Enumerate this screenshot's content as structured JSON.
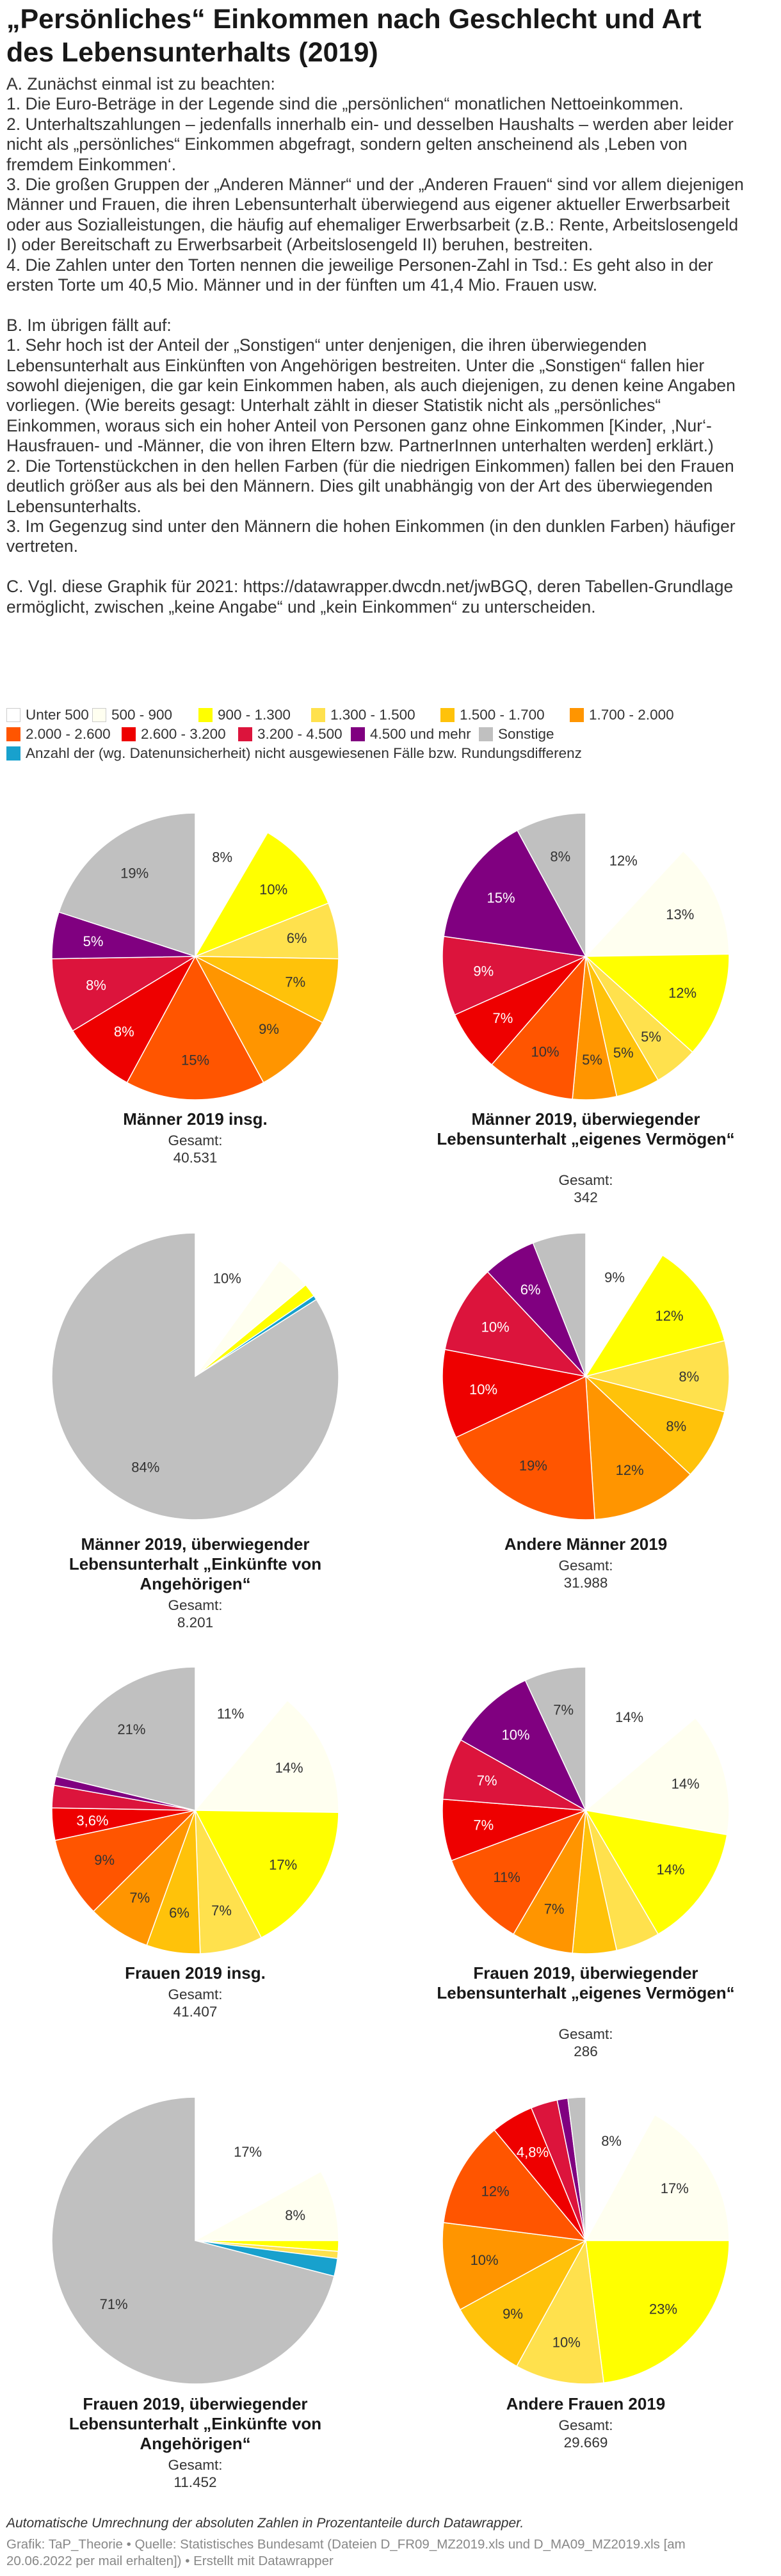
{
  "title": "„Persönliches“ Einkommen nach Geschlecht und Art des Lebensunterhalts (2019)",
  "intro": {
    "a_lines": [
      "A. Zunächst einmal ist zu beachten:",
      "1. Die Euro-Beträge in der Legende sind die „persönlichen“ monatlichen Nettoeinkommen.",
      "2. Unterhaltszahlungen – jedenfalls innerhalb ein- und desselben Haushalts – werden aber leider",
      "nicht als „persönliches“ Einkommen abgefragt, sondern gelten anscheinend als ‚Leben von",
      "fremdem Einkommen‘.",
      "3. Die großen Gruppen der „Anderen Männer“ und der „Anderen Frauen“ sind vor allem diejenigen",
      "Männer und Frauen, die ihren Lebensunterhalt überwiegend aus eigener aktueller Erwerbsarbeit",
      "oder aus Sozialleistungen, die häufig auf ehemaliger Erwerbsarbeit (z.B.: Rente, Arbeitslosengeld",
      "I) oder Bereitschaft zu Erwerbsarbeit (Arbeitslosengeld II) beruhen, bestreiten.",
      "4. Die Zahlen unter den Torten nennen die jeweilige Personen-Zahl in Tsd.: Es geht also in der",
      "ersten Torte um 40,5 Mio. Männer und in der fünften um 41,4 Mio. Frauen usw."
    ],
    "b_lines": [
      "B. Im übrigen fällt auf:",
      "1. Sehr hoch ist der Anteil der „Sonstigen“ unter denjenigen, die ihren überwiegenden",
      "Lebensunterhalt aus Einkünften von Angehörigen bestreiten. Unter die „Sonstigen“ fallen hier",
      "sowohl diejenigen, die gar kein Einkommen haben, als auch diejenigen, zu denen keine Angaben",
      "vorliegen. (Wie bereits gesagt: Unterhalt zählt in dieser Statistik nicht als „persönliches“",
      "Einkommen, woraus sich ein hoher Anteil von Personen ganz ohne Einkommen [Kinder, ‚Nur‘-",
      "Hausfrauen- und -Männer, die von ihren Eltern bzw. PartnerInnen unterhalten werden] erklärt.)",
      "2. Die Tortenstückchen in den hellen Farben (für die niedrigen Einkommen) fallen bei den Frauen",
      "deutlich größer aus als bei den Männern. Dies gilt unabhängig von der Art des überwiegenden",
      "Lebensunterhalts.",
      "3. Im Gegenzug sind unter den Männern die hohen Einkommen (in den dunklen Farben) häufiger",
      "vertreten."
    ],
    "c_lines": [
      "C. Vgl. diese Graphik für 2021: https://datawrapper.dwcdn.net/jwBGQ, deren Tabellen-Grundlage",
      "ermöglicht, zwischen „keine Angabe“ und „kein Einkommen“ zu unterscheiden."
    ]
  },
  "legend": {
    "rows": [
      [
        {
          "label": "Unter 500",
          "color": "#ffffff",
          "border": "#cccccc"
        },
        {
          "label": "500 - 900",
          "color": "#fffff0",
          "border": "#cccccc"
        },
        {
          "label": "900 - 1.300",
          "color": "#ffff00"
        },
        {
          "label": "1.300 - 1.500",
          "color": "#ffe14d"
        },
        {
          "label": "1.500 - 1.700",
          "color": "#ffc20a"
        },
        {
          "label": "1.700 - 2.000",
          "color": "#ff9500"
        }
      ],
      [
        {
          "label": "2.000 - 2.600",
          "color": "#ff5500"
        },
        {
          "label": "2.600 - 3.200",
          "color": "#ee0000"
        },
        {
          "label": "3.200 - 4.500",
          "color": "#dc143c"
        },
        {
          "label": "4.500 und mehr",
          "color": "#800080"
        },
        {
          "label": "Sonstige",
          "color": "#c0c0c0"
        }
      ],
      [
        {
          "label": "Anzahl der (wg. Datenunsicherheit) nicht ausgewiesenen Fälle bzw. Rundungsdifferenz",
          "color": "#18a1cd"
        }
      ]
    ]
  },
  "chart_data": [
    {
      "type": "pie",
      "title": "Männer 2019 insg.",
      "total_label": "Gesamt:",
      "total": "40.531",
      "slices": [
        {
          "category": "Unter 500",
          "value": 8,
          "label": "8%"
        },
        {
          "category": "500 - 900",
          "value": 0,
          "label": ""
        },
        {
          "category": "900 - 1.300",
          "value": 10,
          "label": "10%"
        },
        {
          "category": "1.300 - 1.500",
          "value": 6,
          "label": "6%"
        },
        {
          "category": "1.500 - 1.700",
          "value": 7,
          "label": "7%"
        },
        {
          "category": "1.700 - 2.000",
          "value": 9,
          "label": "9%"
        },
        {
          "category": "2.000 - 2.600",
          "value": 15,
          "label": "15%"
        },
        {
          "category": "2.600 - 3.200",
          "value": 8,
          "label": "8%"
        },
        {
          "category": "3.200 - 4.500",
          "value": 8,
          "label": "8%"
        },
        {
          "category": "4.500 und mehr",
          "value": 5,
          "label": "5%"
        },
        {
          "category": "Sonstige",
          "value": 19,
          "label": "19%"
        }
      ]
    },
    {
      "type": "pie",
      "title": "Männer 2019, überwiegender Lebensunterhalt „eigenes Vermögen“",
      "total_label": "Gesamt:",
      "total": "342",
      "slices": [
        {
          "category": "Unter 500",
          "value": 12,
          "label": "12%"
        },
        {
          "category": "500 - 900",
          "value": 13,
          "label": "13%"
        },
        {
          "category": "900 - 1.300",
          "value": 12,
          "label": "12%"
        },
        {
          "category": "1.300 - 1.500",
          "value": 5,
          "label": "5%"
        },
        {
          "category": "1.500 - 1.700",
          "value": 5,
          "label": "5%"
        },
        {
          "category": "1.700 - 2.000",
          "value": 5,
          "label": "5%"
        },
        {
          "category": "2.000 - 2.600",
          "value": 10,
          "label": "10%"
        },
        {
          "category": "2.600 - 3.200",
          "value": 7,
          "label": "7%"
        },
        {
          "category": "3.200 - 4.500",
          "value": 9,
          "label": "9%"
        },
        {
          "category": "4.500 und mehr",
          "value": 15,
          "label": "15%"
        },
        {
          "category": "Sonstige",
          "value": 8,
          "label": "8%"
        }
      ]
    },
    {
      "type": "pie",
      "title": "Männer 2019, überwiegender Lebensunterhalt „Einkünfte von Angehörigen“",
      "total_label": "Gesamt:",
      "total": "8.201",
      "slices": [
        {
          "category": "Unter 500",
          "value": 10,
          "label": "10%"
        },
        {
          "category": "500 - 900",
          "value": 4,
          "label": ""
        },
        {
          "category": "900 - 1.300",
          "value": 1.5,
          "label": ""
        },
        {
          "category": "Nicht ausgewiesen",
          "value": 0.5,
          "label": ""
        },
        {
          "category": "Sonstige",
          "value": 84,
          "label": "84%"
        }
      ]
    },
    {
      "type": "pie",
      "title": "Andere Männer 2019",
      "total_label": "Gesamt:",
      "total": "31.988",
      "slices": [
        {
          "category": "Unter 500",
          "value": 9,
          "label": "9%"
        },
        {
          "category": "500 - 900",
          "value": 0,
          "label": ""
        },
        {
          "category": "900 - 1.300",
          "value": 12,
          "label": "12%"
        },
        {
          "category": "1.300 - 1.500",
          "value": 8,
          "label": "8%"
        },
        {
          "category": "1.500 - 1.700",
          "value": 8,
          "label": "8%"
        },
        {
          "category": "1.700 - 2.000",
          "value": 12,
          "label": "12%"
        },
        {
          "category": "2.000 - 2.600",
          "value": 19,
          "label": "19%"
        },
        {
          "category": "2.600 - 3.200",
          "value": 10,
          "label": "10%"
        },
        {
          "category": "3.200 - 4.500",
          "value": 10,
          "label": "10%"
        },
        {
          "category": "4.500 und mehr",
          "value": 6,
          "label": "6%"
        },
        {
          "category": "Sonstige",
          "value": 6,
          "label": ""
        }
      ]
    },
    {
      "type": "pie",
      "title": "Frauen 2019 insg.",
      "total_label": "Gesamt:",
      "total": "41.407",
      "slices": [
        {
          "category": "Unter 500",
          "value": 11,
          "label": "11%"
        },
        {
          "category": "500 - 900",
          "value": 14,
          "label": "14%"
        },
        {
          "category": "900 - 1.300",
          "value": 17,
          "label": "17%"
        },
        {
          "category": "1.300 - 1.500",
          "value": 7,
          "label": "7%"
        },
        {
          "category": "1.500 - 1.700",
          "value": 6,
          "label": "6%"
        },
        {
          "category": "1.700 - 2.000",
          "value": 7,
          "label": "7%"
        },
        {
          "category": "2.000 - 2.600",
          "value": 9,
          "label": "9%"
        },
        {
          "category": "2.600 - 3.200",
          "value": 3.6,
          "label": "3,6%"
        },
        {
          "category": "3.200 - 4.500",
          "value": 2.5,
          "label": ""
        },
        {
          "category": "4.500 und mehr",
          "value": 1,
          "label": ""
        },
        {
          "category": "Sonstige",
          "value": 21,
          "label": "21%"
        }
      ]
    },
    {
      "type": "pie",
      "title": "Frauen 2019, überwiegender Lebensunterhalt „eigenes Vermögen“",
      "total_label": "Gesamt:",
      "total": "286",
      "slices": [
        {
          "category": "Unter 500",
          "value": 14,
          "label": "14%"
        },
        {
          "category": "500 - 900",
          "value": 14,
          "label": "14%"
        },
        {
          "category": "900 - 1.300",
          "value": 14,
          "label": "14%"
        },
        {
          "category": "1.300 - 1.500",
          "value": 5,
          "label": ""
        },
        {
          "category": "1.500 - 1.700",
          "value": 5,
          "label": ""
        },
        {
          "category": "1.700 - 2.000",
          "value": 7,
          "label": "7%"
        },
        {
          "category": "2.000 - 2.600",
          "value": 11,
          "label": "11%"
        },
        {
          "category": "2.600 - 3.200",
          "value": 7,
          "label": "7%"
        },
        {
          "category": "3.200 - 4.500",
          "value": 7,
          "label": "7%"
        },
        {
          "category": "4.500 und mehr",
          "value": 10,
          "label": "10%"
        },
        {
          "category": "Sonstige",
          "value": 7,
          "label": "7%"
        }
      ]
    },
    {
      "type": "pie",
      "title": "Frauen 2019, überwiegender Lebensunterhalt „Einkünfte von Angehörigen“",
      "total_label": "Gesamt:",
      "total": "11.452",
      "slices": [
        {
          "category": "Unter 500",
          "value": 17,
          "label": "17%"
        },
        {
          "category": "500 - 900",
          "value": 8,
          "label": "8%"
        },
        {
          "category": "900 - 1.300",
          "value": 1.2,
          "label": ""
        },
        {
          "category": "1.300 - 1.500",
          "value": 0.8,
          "label": ""
        },
        {
          "category": "Nicht ausgewiesen",
          "value": 2,
          "label": ""
        },
        {
          "category": "Sonstige",
          "value": 71,
          "label": "71%"
        }
      ]
    },
    {
      "type": "pie",
      "title": "Andere Frauen 2019",
      "total_label": "Gesamt:",
      "total": "29.669",
      "slices": [
        {
          "category": "Unter 500",
          "value": 8,
          "label": "8%"
        },
        {
          "category": "500 - 900",
          "value": 17,
          "label": "17%"
        },
        {
          "category": "900 - 1.300",
          "value": 23,
          "label": "23%"
        },
        {
          "category": "1.300 - 1.500",
          "value": 10,
          "label": "10%"
        },
        {
          "category": "1.500 - 1.700",
          "value": 9,
          "label": "9%"
        },
        {
          "category": "1.700 - 2.000",
          "value": 10,
          "label": "10%"
        },
        {
          "category": "2.000 - 2.600",
          "value": 12,
          "label": "12%"
        },
        {
          "category": "2.600 - 3.200",
          "value": 4.8,
          "label": "4,8%"
        },
        {
          "category": "3.200 - 4.500",
          "value": 3,
          "label": ""
        },
        {
          "category": "4.500 und mehr",
          "value": 1.2,
          "label": ""
        },
        {
          "category": "Sonstige",
          "value": 2,
          "label": ""
        }
      ]
    }
  ],
  "colors": {
    "Unter 500": "#ffffff",
    "500 - 900": "#fffff0",
    "900 - 1.300": "#ffff00",
    "1.300 - 1.500": "#ffe14d",
    "1.500 - 1.700": "#ffc20a",
    "1.700 - 2.000": "#ff9500",
    "2.000 - 2.600": "#ff5500",
    "2.600 - 3.200": "#ee0000",
    "3.200 - 4.500": "#dc143c",
    "4.500 und mehr": "#800080",
    "Sonstige": "#c0c0c0",
    "Nicht ausgewiesen": "#18a1cd"
  },
  "note": "Automatische Umrechnung der absoluten Zahlen in Prozentanteile durch Datawrapper.",
  "footer": {
    "line1": "Grafik: TaP_Theorie • Quelle: Statistisches Bundesamt (Dateien D_FR09_MZ2019.xls und D_MA09_MZ2019.xls [am",
    "line2": "20.06.2022 per mail erhalten]) • Erstellt mit Datawrapper"
  }
}
